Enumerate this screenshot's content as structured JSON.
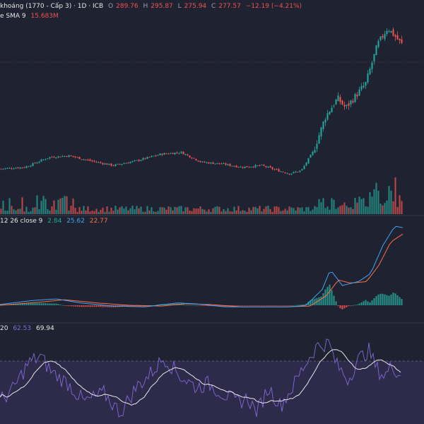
{
  "header": {
    "title": "khoáng (1770 - Cấp 3) · 1D · ICB",
    "open_label": "O",
    "open": "289.76",
    "high_label": "H",
    "high": "295.87",
    "low_label": "L",
    "low": "275.94",
    "close_label": "C",
    "close": "277.57",
    "change": "−12.19 (−4.21%)"
  },
  "volume_legend": {
    "label": "e SMA 9",
    "value": "15.683M"
  },
  "macd_legend": {
    "params": "12 26 close 9",
    "hist": "2.84",
    "macd": "25.62",
    "signal": "22.77"
  },
  "rsi_legend": {
    "params": "20",
    "rsi": "62.53",
    "ma": "69.94"
  },
  "colors": {
    "background": "#1f2230",
    "up": "#26a69a",
    "down": "#ef5350",
    "macd_line": "#42a5f5",
    "signal_line": "#ff7043",
    "rsi_line": "#7e6bd6",
    "rsi_band": "#2e2a4a"
  },
  "chart_data": {
    "type": "candlestick",
    "series": [
      "price",
      "volume",
      "macd",
      "rsi"
    ],
    "last": {
      "open": 289.76,
      "high": 295.87,
      "low": 275.94,
      "close": 277.57
    },
    "price_path": [
      [
        0,
        0.1
      ],
      [
        0.06,
        0.11
      ],
      [
        0.12,
        0.17
      ],
      [
        0.17,
        0.18
      ],
      [
        0.22,
        0.15
      ],
      [
        0.28,
        0.12
      ],
      [
        0.34,
        0.15
      ],
      [
        0.4,
        0.19
      ],
      [
        0.45,
        0.2
      ],
      [
        0.5,
        0.14
      ],
      [
        0.55,
        0.13
      ],
      [
        0.6,
        0.11
      ],
      [
        0.65,
        0.12
      ],
      [
        0.69,
        0.09
      ],
      [
        0.72,
        0.07
      ],
      [
        0.75,
        0.09
      ],
      [
        0.78,
        0.21
      ],
      [
        0.81,
        0.42
      ],
      [
        0.84,
        0.53
      ],
      [
        0.86,
        0.47
      ],
      [
        0.88,
        0.53
      ],
      [
        0.91,
        0.62
      ],
      [
        0.94,
        0.86
      ],
      [
        0.965,
        0.96
      ],
      [
        1.0,
        0.86
      ]
    ],
    "rsi_path": [
      [
        0,
        0.22
      ],
      [
        0.03,
        0.35
      ],
      [
        0.07,
        0.72
      ],
      [
        0.1,
        0.82
      ],
      [
        0.13,
        0.6
      ],
      [
        0.17,
        0.45
      ],
      [
        0.21,
        0.2
      ],
      [
        0.26,
        0.32
      ],
      [
        0.3,
        0.05
      ],
      [
        0.34,
        0.4
      ],
      [
        0.37,
        0.55
      ],
      [
        0.41,
        0.8
      ],
      [
        0.45,
        0.55
      ],
      [
        0.49,
        0.4
      ],
      [
        0.52,
        0.45
      ],
      [
        0.56,
        0.3
      ],
      [
        0.59,
        0.2
      ],
      [
        0.62,
        0.25
      ],
      [
        0.64,
        0.05
      ],
      [
        0.67,
        0.4
      ],
      [
        0.7,
        0.15
      ],
      [
        0.73,
        0.4
      ],
      [
        0.76,
        0.7
      ],
      [
        0.79,
        0.95
      ],
      [
        0.82,
        1.0
      ],
      [
        0.84,
        0.7
      ],
      [
        0.87,
        0.5
      ],
      [
        0.89,
        0.75
      ],
      [
        0.92,
        0.9
      ],
      [
        0.94,
        0.65
      ],
      [
        0.96,
        0.55
      ],
      [
        0.98,
        0.7
      ],
      [
        1.0,
        0.55
      ]
    ]
  }
}
